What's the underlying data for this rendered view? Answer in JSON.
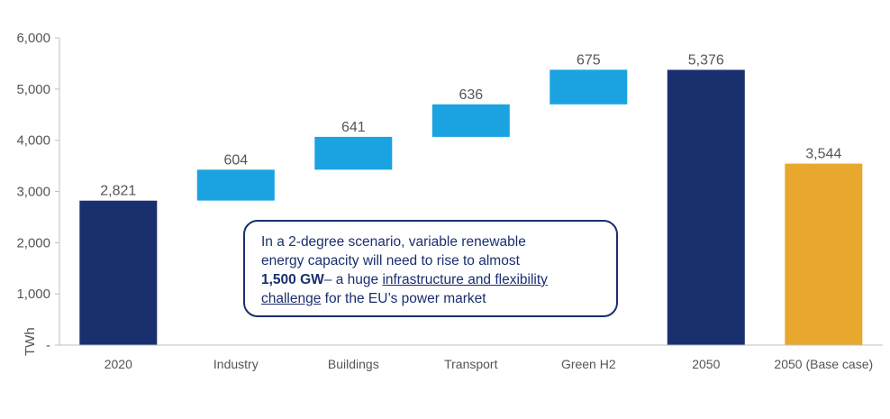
{
  "chart_data": {
    "type": "bar",
    "subtype": "waterfall",
    "ylabel": "TWh",
    "ylim": [
      0,
      6000
    ],
    "yticks": [
      "-",
      "1,000",
      "2,000",
      "3,000",
      "4,000",
      "5,000",
      "6,000"
    ],
    "ytick_values": [
      0,
      1000,
      2000,
      3000,
      4000,
      5000,
      6000
    ],
    "grid": false,
    "categories": [
      "2020",
      "Industry",
      "Buildings",
      "Transport",
      "Green H2",
      "2050",
      "2050 (Base case)"
    ],
    "bars": [
      {
        "category": "2020",
        "kind": "total",
        "base": 0,
        "value": 2821,
        "label": "2,821",
        "color": "#1a2f6e"
      },
      {
        "category": "Industry",
        "kind": "increment",
        "base": 2821,
        "value": 604,
        "label": "604",
        "color": "#1aa3e0"
      },
      {
        "category": "Buildings",
        "kind": "increment",
        "base": 3425,
        "value": 641,
        "label": "641",
        "color": "#1aa3e0"
      },
      {
        "category": "Transport",
        "kind": "increment",
        "base": 4066,
        "value": 636,
        "label": "636",
        "color": "#1aa3e0"
      },
      {
        "category": "Green H2",
        "kind": "increment",
        "base": 4702,
        "value": 675,
        "label": "675",
        "color": "#1aa3e0"
      },
      {
        "category": "2050",
        "kind": "total",
        "base": 0,
        "value": 5376,
        "label": "5,376",
        "color": "#1a2f6e"
      },
      {
        "category": "2050 (Base case)",
        "kind": "total",
        "base": 0,
        "value": 3544,
        "label": "3,544",
        "color": "#e8a82e"
      }
    ]
  },
  "callout": {
    "line1": "In a 2-degree scenario, variable renewable",
    "line2": "energy capacity will need to rise to almost",
    "bold": "1,500 GW",
    "after_bold": "– a huge ",
    "underlined_1": "infrastructure and flexibility",
    "underlined_2": "challenge",
    "end": " for the EU’s power market"
  }
}
